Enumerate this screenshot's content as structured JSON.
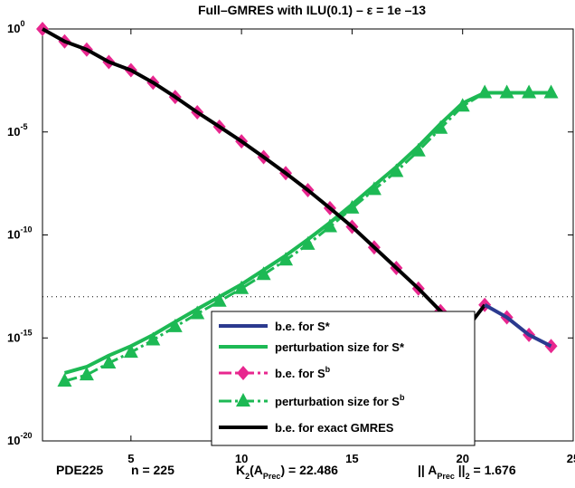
{
  "chart_data": {
    "type": "line",
    "title": "Full–GMRES with ILU(0.1) – ε = 1e –13",
    "x_axis": {
      "ticks": [
        5,
        10,
        15,
        20,
        25
      ],
      "range": [
        1,
        25
      ]
    },
    "y_axis": {
      "scale": "log",
      "range": [
        1e-20,
        1
      ],
      "ticks_exponents": [
        0,
        -5,
        -10,
        -15,
        -20
      ]
    },
    "threshold_line": {
      "y": 1e-13,
      "style": "dotted"
    },
    "series": [
      {
        "name": "b.e. for S*",
        "color": "#2b3a8f",
        "marker": "none",
        "style": "solid",
        "x": [
          21,
          22,
          23,
          24
        ],
        "y": [
          4e-14,
          1e-14,
          1.4e-15,
          4e-16
        ]
      },
      {
        "name": "perturbation size for S*",
        "color": "#1db954",
        "marker": "none",
        "style": "solid",
        "x": [
          2,
          3,
          4,
          5,
          6,
          7,
          8,
          9,
          10,
          11,
          12,
          13,
          14,
          15,
          16,
          17,
          18,
          19,
          20,
          21,
          22,
          23,
          24
        ],
        "y": [
          2e-17,
          4e-17,
          1.4e-16,
          4e-16,
          1.4e-15,
          6e-15,
          2.5e-14,
          1e-13,
          4e-13,
          2e-12,
          1e-11,
          6e-11,
          4e-10,
          3e-09,
          2.5e-08,
          2e-07,
          2e-06,
          2.5e-05,
          0.00025,
          0.0008,
          0.0008,
          0.0008,
          0.0008
        ]
      },
      {
        "name": "b.e. for Sᵇ",
        "color": "#e8278f",
        "marker": "diamond",
        "style": "dashdot",
        "x": [
          1,
          2,
          3,
          4,
          5,
          6,
          7,
          8,
          9,
          10,
          11,
          12,
          13,
          14,
          15,
          16,
          17,
          18,
          19,
          20,
          21,
          22,
          23,
          24
        ],
        "y": [
          1,
          0.25,
          0.1,
          0.025,
          0.01,
          0.0025,
          0.0005,
          9e-05,
          1.8e-05,
          3.5e-06,
          6e-07,
          1e-07,
          1.5e-08,
          2e-09,
          2.5e-10,
          2.5e-11,
          2.5e-12,
          2.5e-13,
          2e-14,
          1.6e-15,
          4e-14,
          1e-14,
          1.4e-15,
          4e-16
        ]
      },
      {
        "name": "perturbation size for Sᵇ",
        "color": "#1db954",
        "marker": "triangle",
        "style": "dashdot",
        "x": [
          2,
          3,
          4,
          5,
          6,
          7,
          8,
          9,
          10,
          11,
          12,
          13,
          14,
          15,
          16,
          17,
          18,
          19,
          20,
          21,
          22,
          23,
          24
        ],
        "y": [
          8e-18,
          1.6e-17,
          6e-17,
          2e-16,
          8e-16,
          3.5e-15,
          1.5e-14,
          6e-14,
          2.5e-13,
          1.2e-12,
          6e-12,
          3.5e-11,
          2.5e-10,
          2e-09,
          1.6e-08,
          1.2e-07,
          1.2e-06,
          1.5e-05,
          0.00018,
          0.0008,
          0.0008,
          0.0008,
          0.0008
        ]
      },
      {
        "name": "b.e. for exact GMRES",
        "color": "#000000",
        "marker": "none",
        "style": "solid",
        "x": [
          1,
          2,
          3,
          4,
          5,
          6,
          7,
          8,
          9,
          10,
          11,
          12,
          13,
          14,
          15,
          16,
          17,
          18,
          19,
          20,
          21
        ],
        "y": [
          1,
          0.25,
          0.1,
          0.025,
          0.01,
          0.0025,
          0.0005,
          9e-05,
          1.8e-05,
          3.5e-06,
          6e-07,
          1e-07,
          1.5e-08,
          2e-09,
          2.5e-10,
          2.5e-11,
          2.5e-12,
          2.5e-13,
          2e-14,
          1.6e-15,
          4e-14
        ]
      }
    ],
    "legend": {
      "placement": "lower-center",
      "entries": [
        "b.e. for S*",
        "perturbation size for S*",
        "b.e. for S",
        "perturbation size for S",
        "b.e. for exact GMRES"
      ],
      "superscripts": [
        "",
        "",
        "b",
        "b",
        ""
      ]
    },
    "footer": {
      "problem": "PDE225",
      "n": "n = 225",
      "kappa_label": "K",
      "kappa_sub": "2",
      "kappa_arg_label": "(A",
      "kappa_arg_sub": "Prec",
      "kappa_value": ") = 22.486",
      "norm_label": "|| A",
      "norm_sub": "Prec",
      "norm_value": " ||",
      "norm_sub2": "2",
      "norm_result": " = 1.676"
    }
  }
}
